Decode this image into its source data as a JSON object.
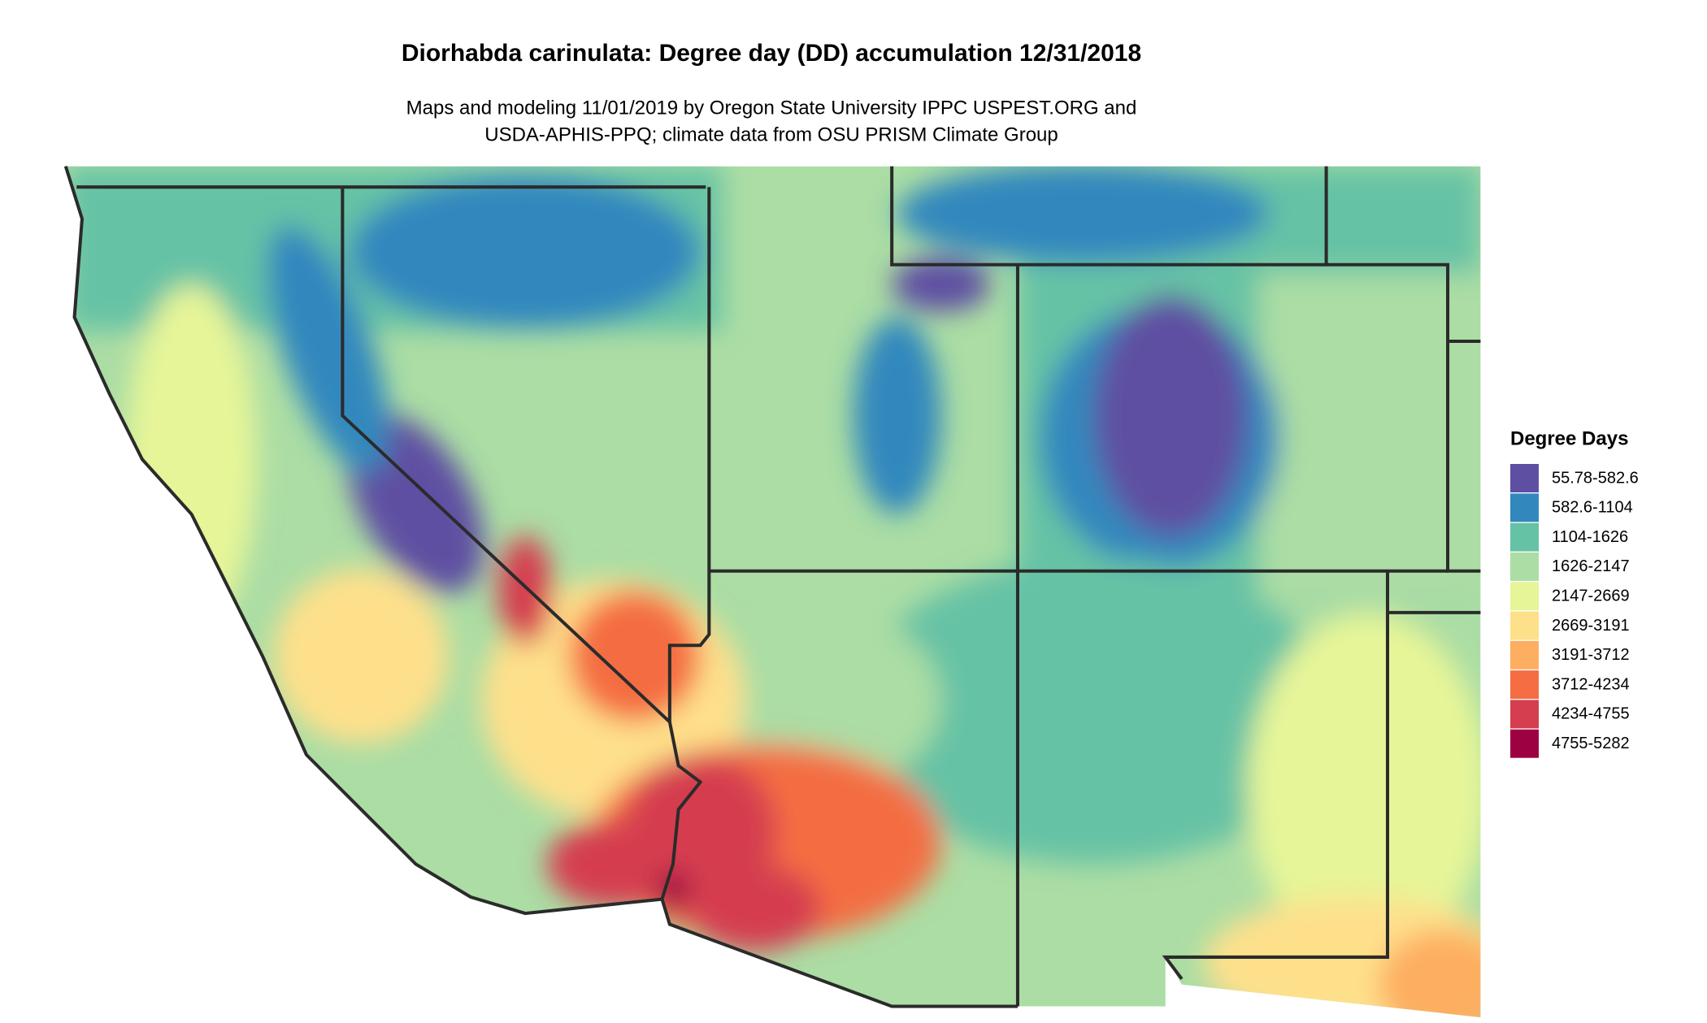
{
  "title": "Diorhabda carinulata: Degree day (DD) accumulation 12/31/2018",
  "subtitle": [
    "Maps and modeling 11/01/2019 by Oregon State University IPPC USPEST.ORG and",
    "USDA-APHIS-PPQ; climate data from OSU PRISM Climate Group"
  ],
  "legend": {
    "title": "Degree Days",
    "items": [
      {
        "label": "55.78-582.6",
        "color": "#5e4fa2"
      },
      {
        "label": "582.6-1104",
        "color": "#3288bd"
      },
      {
        "label": "1104-1626",
        "color": "#66c2a5"
      },
      {
        "label": "1626-2147",
        "color": "#abdda4"
      },
      {
        "label": "2147-2669",
        "color": "#e6f598"
      },
      {
        "label": "2669-3191",
        "color": "#fee08b"
      },
      {
        "label": "3191-3712",
        "color": "#fdae61"
      },
      {
        "label": "3712-4234",
        "color": "#f46d43"
      },
      {
        "label": "4234-4755",
        "color": "#d53e4f"
      },
      {
        "label": "4755-5282",
        "color": "#9e0142"
      }
    ]
  }
}
